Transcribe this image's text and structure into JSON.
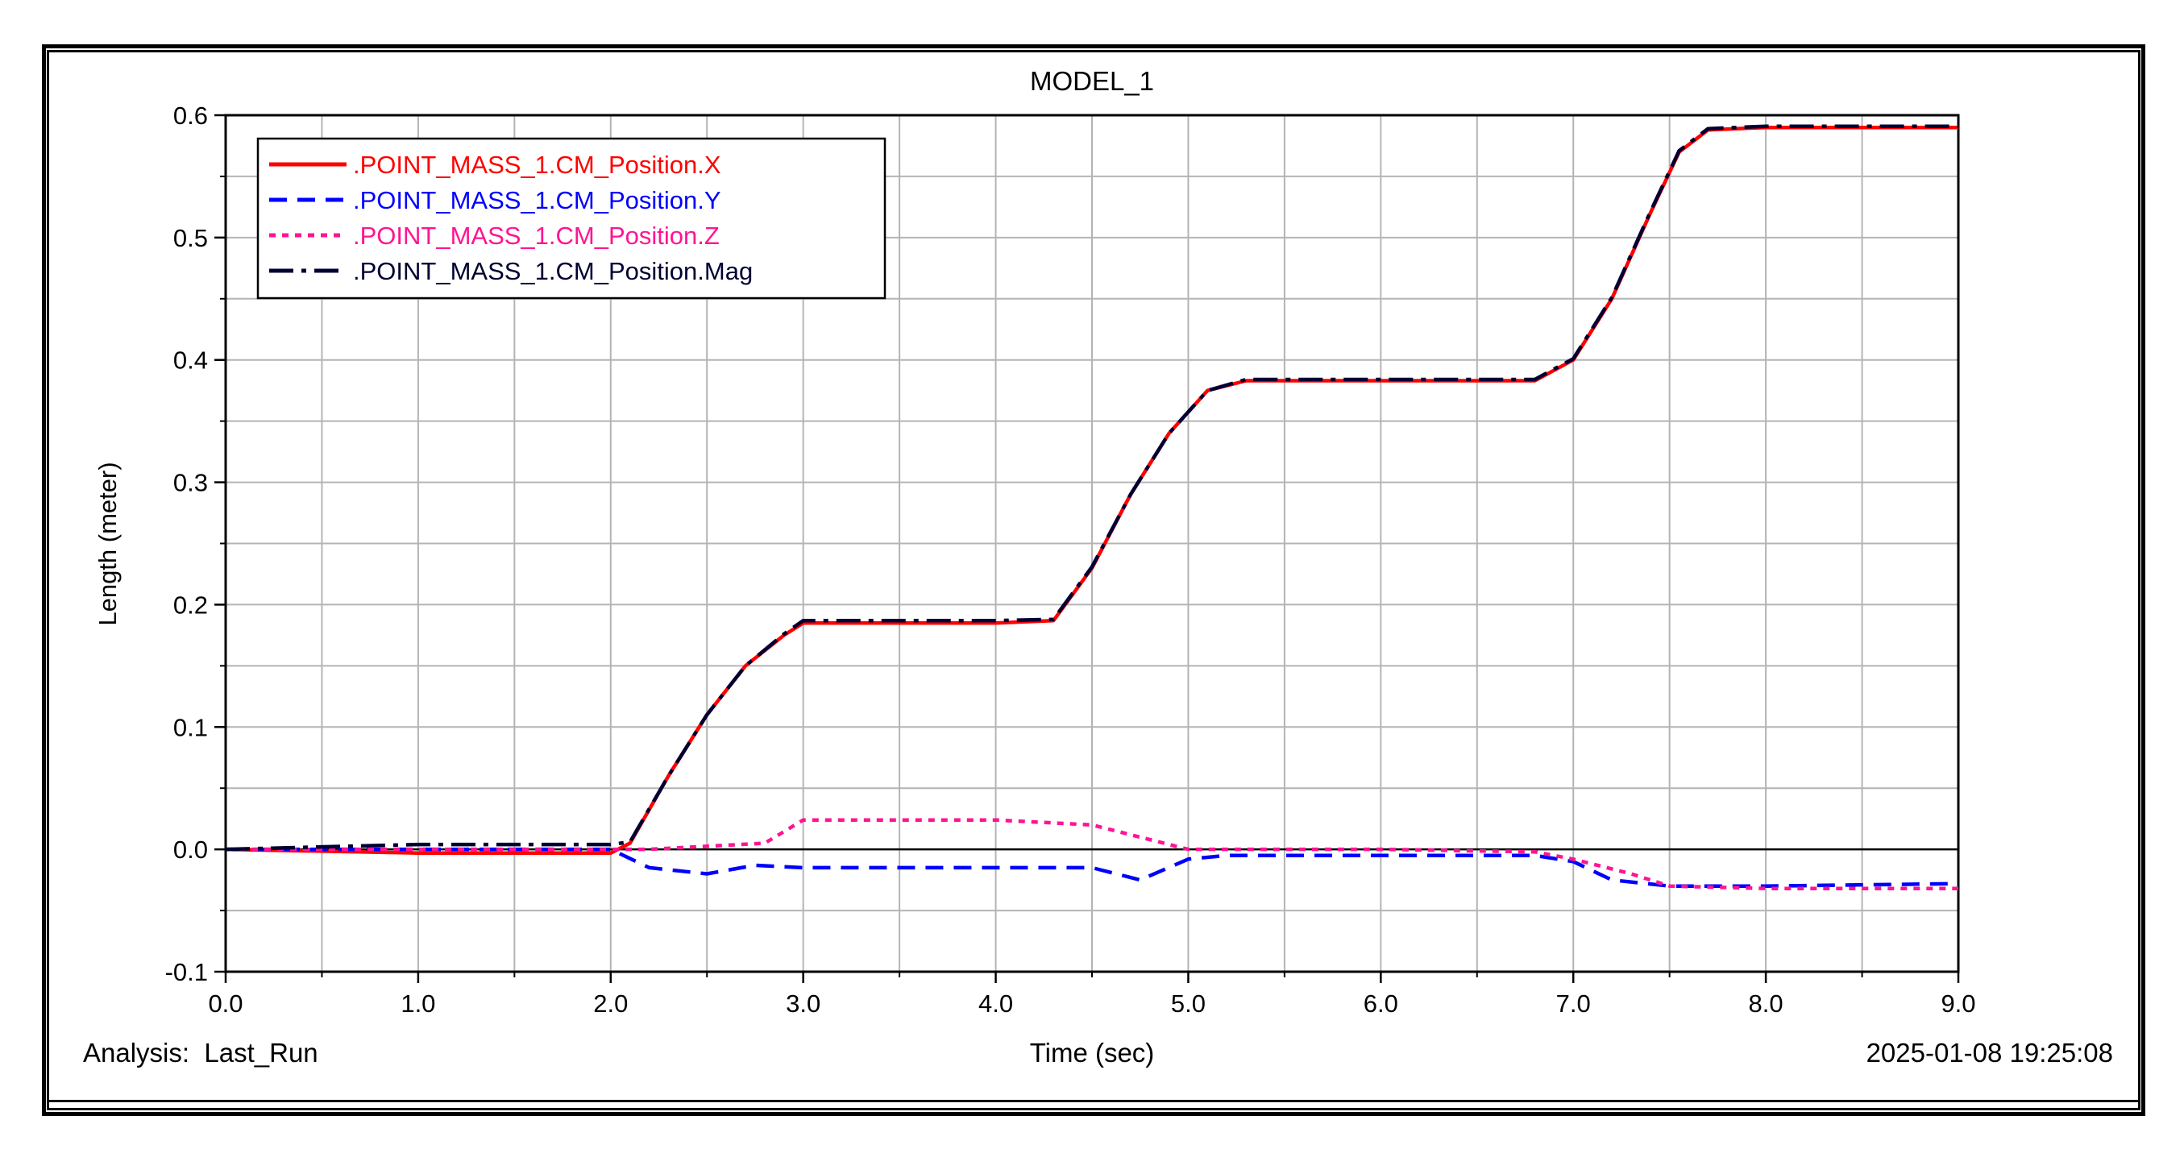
{
  "chart_data": {
    "type": "line",
    "title": "MODEL_1",
    "xlabel": "Time (sec)",
    "ylabel": "Length (meter)",
    "xlim": [
      0.0,
      9.0
    ],
    "ylim": [
      -0.1,
      0.6
    ],
    "x_ticks": [
      "0.0",
      "1.0",
      "2.0",
      "3.0",
      "4.0",
      "5.0",
      "6.0",
      "7.0",
      "8.0",
      "9.0"
    ],
    "y_ticks": [
      "-0.1",
      "0.0",
      "0.1",
      "0.2",
      "0.3",
      "0.4",
      "0.5",
      "0.6"
    ],
    "grid": true,
    "legend_position": "top-left",
    "series": [
      {
        "name": ".POINT_MASS_1.CM_Position.X",
        "color": "#ff0000",
        "style": "solid",
        "x": [
          0.0,
          1.0,
          2.0,
          2.1,
          2.3,
          2.5,
          2.7,
          2.9,
          3.0,
          3.5,
          4.0,
          4.3,
          4.5,
          4.7,
          4.9,
          5.1,
          5.3,
          6.0,
          6.8,
          7.0,
          7.2,
          7.4,
          7.55,
          7.7,
          8.0,
          9.0
        ],
        "y": [
          0.0,
          -0.003,
          -0.003,
          0.005,
          0.06,
          0.11,
          0.15,
          0.175,
          0.185,
          0.185,
          0.185,
          0.187,
          0.23,
          0.29,
          0.34,
          0.375,
          0.383,
          0.383,
          0.383,
          0.4,
          0.45,
          0.52,
          0.57,
          0.588,
          0.59,
          0.59
        ]
      },
      {
        "name": ".POINT_MASS_1.CM_Position.Y",
        "color": "#0000ff",
        "style": "dashed",
        "x": [
          0.0,
          1.0,
          2.0,
          2.2,
          2.5,
          2.75,
          3.0,
          4.0,
          4.5,
          4.75,
          5.0,
          5.2,
          6.0,
          6.8,
          7.0,
          7.2,
          7.5,
          8.0,
          9.0
        ],
        "y": [
          0.0,
          0.0,
          0.0,
          -0.015,
          -0.02,
          -0.013,
          -0.015,
          -0.015,
          -0.015,
          -0.025,
          -0.008,
          -0.005,
          -0.005,
          -0.005,
          -0.01,
          -0.025,
          -0.03,
          -0.03,
          -0.028
        ]
      },
      {
        "name": ".POINT_MASS_1.CM_Position.Z",
        "color": "#ff1493",
        "style": "dotted",
        "x": [
          0.0,
          1.0,
          2.0,
          2.2,
          2.8,
          3.0,
          4.0,
          4.5,
          4.75,
          5.0,
          6.0,
          6.8,
          7.0,
          7.3,
          7.5,
          8.0,
          9.0
        ],
        "y": [
          0.0,
          0.0,
          0.0,
          0.0,
          0.005,
          0.024,
          0.024,
          0.02,
          0.01,
          0.0,
          0.0,
          -0.002,
          -0.008,
          -0.02,
          -0.03,
          -0.032,
          -0.032
        ]
      },
      {
        "name": ".POINT_MASS_1.CM_Position.Mag",
        "color": "#000033",
        "style": "dashdot",
        "x": [
          0.0,
          1.0,
          2.0,
          2.1,
          2.3,
          2.5,
          2.7,
          2.9,
          3.0,
          3.5,
          4.0,
          4.3,
          4.5,
          4.7,
          4.9,
          5.1,
          5.3,
          6.0,
          6.8,
          7.0,
          7.2,
          7.4,
          7.55,
          7.7,
          8.0,
          9.0
        ],
        "y": [
          0.0,
          0.004,
          0.004,
          0.006,
          0.06,
          0.11,
          0.15,
          0.176,
          0.187,
          0.187,
          0.187,
          0.188,
          0.231,
          0.29,
          0.34,
          0.375,
          0.384,
          0.384,
          0.384,
          0.401,
          0.451,
          0.521,
          0.571,
          0.589,
          0.591,
          0.591
        ]
      }
    ]
  },
  "footer": {
    "analysis_label": "Analysis:  Last_Run",
    "timestamp": "2025-01-08 19:25:08"
  }
}
